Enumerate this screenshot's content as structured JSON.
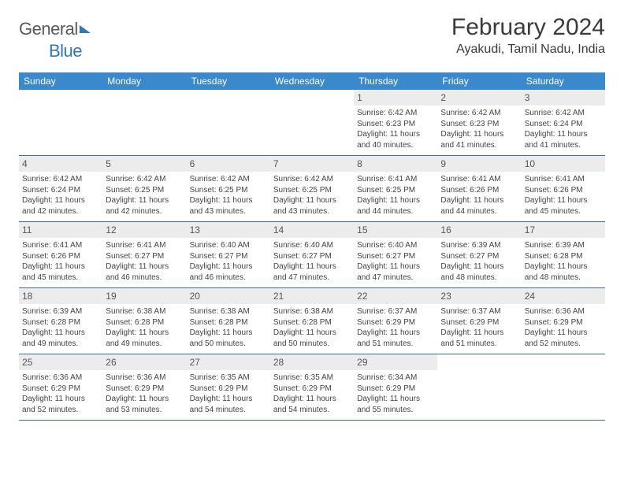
{
  "logo": {
    "text1": "General",
    "text2": "Blue"
  },
  "title": "February 2024",
  "location": "Ayakudi, Tamil Nadu, India",
  "weekdays": [
    "Sunday",
    "Monday",
    "Tuesday",
    "Wednesday",
    "Thursday",
    "Friday",
    "Saturday"
  ],
  "colors": {
    "header_bg": "#3a89cc",
    "header_text": "#ffffff",
    "daynum_bg": "#ececec",
    "week_border": "#3a6fa3",
    "logo_gray": "#555a60",
    "logo_blue": "#2f78bd"
  },
  "typography": {
    "title_fontsize": 30,
    "location_fontsize": 16,
    "weekday_fontsize": 12,
    "daynum_fontsize": 12,
    "info_fontsize": 10
  },
  "layout": {
    "cols": 7,
    "rows": 5,
    "first_day_column": 4
  },
  "days": [
    {
      "n": 1,
      "sunrise": "6:42 AM",
      "sunset": "6:23 PM",
      "daylight": "11 hours and 40 minutes."
    },
    {
      "n": 2,
      "sunrise": "6:42 AM",
      "sunset": "6:23 PM",
      "daylight": "11 hours and 41 minutes."
    },
    {
      "n": 3,
      "sunrise": "6:42 AM",
      "sunset": "6:24 PM",
      "daylight": "11 hours and 41 minutes."
    },
    {
      "n": 4,
      "sunrise": "6:42 AM",
      "sunset": "6:24 PM",
      "daylight": "11 hours and 42 minutes."
    },
    {
      "n": 5,
      "sunrise": "6:42 AM",
      "sunset": "6:25 PM",
      "daylight": "11 hours and 42 minutes."
    },
    {
      "n": 6,
      "sunrise": "6:42 AM",
      "sunset": "6:25 PM",
      "daylight": "11 hours and 43 minutes."
    },
    {
      "n": 7,
      "sunrise": "6:42 AM",
      "sunset": "6:25 PM",
      "daylight": "11 hours and 43 minutes."
    },
    {
      "n": 8,
      "sunrise": "6:41 AM",
      "sunset": "6:25 PM",
      "daylight": "11 hours and 44 minutes."
    },
    {
      "n": 9,
      "sunrise": "6:41 AM",
      "sunset": "6:26 PM",
      "daylight": "11 hours and 44 minutes."
    },
    {
      "n": 10,
      "sunrise": "6:41 AM",
      "sunset": "6:26 PM",
      "daylight": "11 hours and 45 minutes."
    },
    {
      "n": 11,
      "sunrise": "6:41 AM",
      "sunset": "6:26 PM",
      "daylight": "11 hours and 45 minutes."
    },
    {
      "n": 12,
      "sunrise": "6:41 AM",
      "sunset": "6:27 PM",
      "daylight": "11 hours and 46 minutes."
    },
    {
      "n": 13,
      "sunrise": "6:40 AM",
      "sunset": "6:27 PM",
      "daylight": "11 hours and 46 minutes."
    },
    {
      "n": 14,
      "sunrise": "6:40 AM",
      "sunset": "6:27 PM",
      "daylight": "11 hours and 47 minutes."
    },
    {
      "n": 15,
      "sunrise": "6:40 AM",
      "sunset": "6:27 PM",
      "daylight": "11 hours and 47 minutes."
    },
    {
      "n": 16,
      "sunrise": "6:39 AM",
      "sunset": "6:27 PM",
      "daylight": "11 hours and 48 minutes."
    },
    {
      "n": 17,
      "sunrise": "6:39 AM",
      "sunset": "6:28 PM",
      "daylight": "11 hours and 48 minutes."
    },
    {
      "n": 18,
      "sunrise": "6:39 AM",
      "sunset": "6:28 PM",
      "daylight": "11 hours and 49 minutes."
    },
    {
      "n": 19,
      "sunrise": "6:38 AM",
      "sunset": "6:28 PM",
      "daylight": "11 hours and 49 minutes."
    },
    {
      "n": 20,
      "sunrise": "6:38 AM",
      "sunset": "6:28 PM",
      "daylight": "11 hours and 50 minutes."
    },
    {
      "n": 21,
      "sunrise": "6:38 AM",
      "sunset": "6:28 PM",
      "daylight": "11 hours and 50 minutes."
    },
    {
      "n": 22,
      "sunrise": "6:37 AM",
      "sunset": "6:29 PM",
      "daylight": "11 hours and 51 minutes."
    },
    {
      "n": 23,
      "sunrise": "6:37 AM",
      "sunset": "6:29 PM",
      "daylight": "11 hours and 51 minutes."
    },
    {
      "n": 24,
      "sunrise": "6:36 AM",
      "sunset": "6:29 PM",
      "daylight": "11 hours and 52 minutes."
    },
    {
      "n": 25,
      "sunrise": "6:36 AM",
      "sunset": "6:29 PM",
      "daylight": "11 hours and 52 minutes."
    },
    {
      "n": 26,
      "sunrise": "6:36 AM",
      "sunset": "6:29 PM",
      "daylight": "11 hours and 53 minutes."
    },
    {
      "n": 27,
      "sunrise": "6:35 AM",
      "sunset": "6:29 PM",
      "daylight": "11 hours and 54 minutes."
    },
    {
      "n": 28,
      "sunrise": "6:35 AM",
      "sunset": "6:29 PM",
      "daylight": "11 hours and 54 minutes."
    },
    {
      "n": 29,
      "sunrise": "6:34 AM",
      "sunset": "6:29 PM",
      "daylight": "11 hours and 55 minutes."
    }
  ],
  "labels": {
    "sunrise": "Sunrise:",
    "sunset": "Sunset:",
    "daylight": "Daylight:"
  }
}
